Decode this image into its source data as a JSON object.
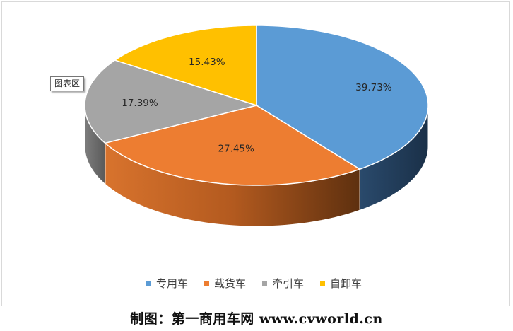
{
  "chart_data": {
    "type": "pie",
    "style": "3d-exploded-perspective",
    "title": "",
    "series": [
      {
        "name": "专用车",
        "value": 39.73,
        "label": "39.73%",
        "color": "#5b9bd5",
        "side_color": "#1f3a56"
      },
      {
        "name": "载货车",
        "value": 27.45,
        "label": "27.45%",
        "color": "#ed7d31",
        "side_color": "#a9501a"
      },
      {
        "name": "牵引车",
        "value": 17.39,
        "label": "17.39%",
        "color": "#a5a5a5",
        "side_color": "#6e6e6e"
      },
      {
        "name": "自卸车",
        "value": 15.43,
        "label": "15.43%",
        "color": "#ffc000",
        "side_color": "#a07800"
      }
    ],
    "legend_position": "bottom",
    "start_angle": "12 o'clock",
    "direction": "clockwise"
  },
  "tooltip": {
    "text": "图表区"
  },
  "footer": {
    "text": "制图：第一商用车网 www.cvworld.cn"
  }
}
